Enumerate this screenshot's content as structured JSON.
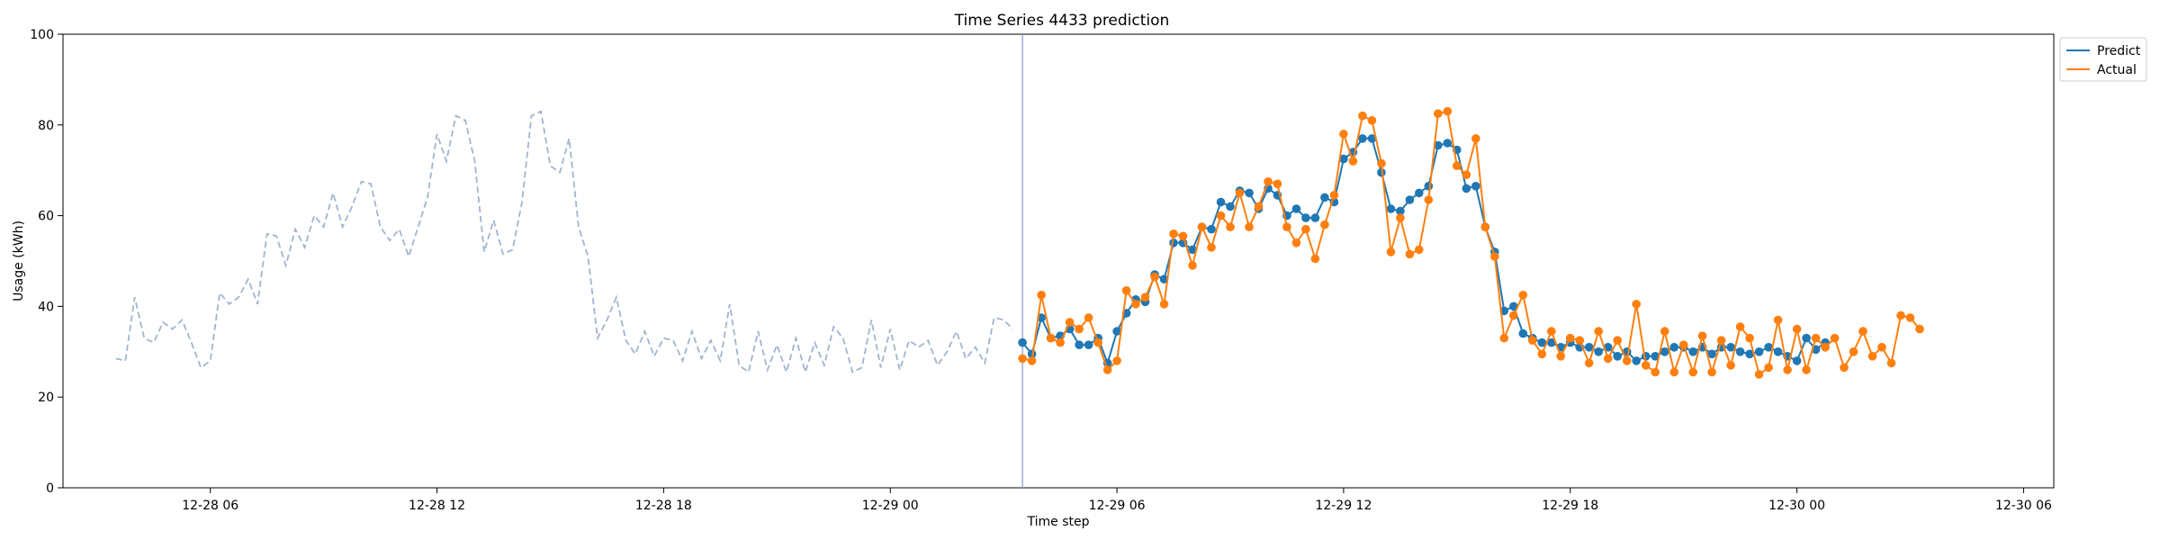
{
  "chart_data": {
    "type": "line",
    "title": "Time Series 4433 prediction",
    "xlabel": "Time step",
    "ylabel": "Usage (kWh)",
    "ylim": [
      0,
      100
    ],
    "yticks": [
      0,
      20,
      40,
      60,
      80,
      100
    ],
    "xlim_hours_from_12_28_00": [
      2.1,
      54.8
    ],
    "xticks": [
      {
        "label": "12-28 06",
        "hour": 6
      },
      {
        "label": "12-28 12",
        "hour": 12
      },
      {
        "label": "12-28 18",
        "hour": 18
      },
      {
        "label": "12-29 00",
        "hour": 24
      },
      {
        "label": "12-29 06",
        "hour": 30
      },
      {
        "label": "12-29 12",
        "hour": 36
      },
      {
        "label": "12-29 18",
        "hour": 42
      },
      {
        "label": "12-30 00",
        "hour": 48
      },
      {
        "label": "12-30 06",
        "hour": 54
      }
    ],
    "interval_hours": 0.25,
    "history": {
      "start_hour": 3.5,
      "step_hours": 0.25,
      "values": [
        28.5,
        28,
        42,
        33,
        32,
        36.5,
        35,
        37,
        32,
        26.5,
        28,
        43,
        40.5,
        42,
        46,
        40.5,
        56,
        55.5,
        49,
        57,
        53,
        60,
        57.5,
        65,
        57.5,
        62,
        67.5,
        67,
        57.5,
        54.5,
        57,
        51,
        57.5,
        64,
        78,
        72,
        82,
        81,
        72,
        52,
        59,
        51.5,
        52.5,
        63,
        82,
        83,
        71,
        69.5,
        77,
        57.5,
        51,
        33,
        37,
        42,
        32.5,
        29.5,
        34.5,
        29,
        33,
        32.5,
        28,
        34.5,
        28.5,
        32.5,
        28,
        40.5,
        27,
        25.5,
        34.5,
        26,
        31.5,
        25.5,
        33,
        25.5,
        32,
        27,
        35.5,
        33,
        25.5,
        26.5,
        37,
        26.5,
        35,
        26,
        32.5,
        31,
        32.5,
        27,
        30,
        34.5,
        28.5,
        31,
        27.5,
        37.5,
        37,
        35
      ]
    },
    "forecast_start_hour": 27.5,
    "series": [
      {
        "name": "Predict",
        "color": "#1f77b4",
        "start_hour": 27.5,
        "step_hours": 0.25,
        "values": [
          32,
          29.5,
          37.5,
          33,
          33.5,
          35,
          31.5,
          31.5,
          33,
          27.5,
          34.5,
          38.5,
          41.5,
          41,
          47,
          46,
          54,
          54,
          52.5,
          57.5,
          57,
          63,
          62,
          65.5,
          65,
          61.5,
          66,
          64.5,
          60,
          61.5,
          59.5,
          59.5,
          64,
          63,
          72.5,
          74,
          77,
          77,
          69.5,
          61.5,
          61,
          63.5,
          65,
          66.5,
          75.5,
          76,
          74.5,
          66,
          66.5,
          57.5,
          52,
          39,
          40,
          34,
          33,
          32,
          32,
          31,
          32,
          31,
          31,
          30,
          31,
          29,
          30,
          28,
          29,
          29,
          30,
          31,
          31,
          30,
          31,
          29.5,
          31,
          31,
          30,
          29.5,
          30,
          31,
          30,
          29,
          28,
          33,
          30.5,
          32
        ]
      },
      {
        "name": "Actual",
        "color": "#ff7f0e",
        "start_hour": 27.5,
        "step_hours": 0.25,
        "values": [
          28.5,
          28,
          42.5,
          33,
          32,
          36.5,
          35,
          37.5,
          32,
          26,
          28,
          43.5,
          40.5,
          42,
          46.5,
          40.5,
          56,
          55.5,
          49,
          57.5,
          53,
          60,
          57.5,
          65,
          57.5,
          62,
          67.5,
          67,
          57.5,
          54,
          57,
          50.5,
          58,
          64.5,
          78,
          72,
          82,
          81,
          71.5,
          52,
          59.5,
          51.5,
          52.5,
          63.5,
          82.5,
          83,
          71,
          69,
          77,
          57.5,
          51,
          33,
          38,
          42.5,
          32.5,
          29.5,
          34.5,
          29,
          33,
          32.5,
          27.5,
          34.5,
          28.5,
          32.5,
          28,
          40.5,
          27,
          25.5,
          34.5,
          25.5,
          31.5,
          25.5,
          33.5,
          25.5,
          32.5,
          27,
          35.5,
          33,
          25,
          26.5,
          37,
          26,
          35,
          26,
          33,
          31,
          33,
          26.5,
          30,
          34.5,
          29,
          31,
          27.5,
          38,
          37.5,
          35
        ]
      }
    ],
    "legend": {
      "position": "top-right-outside",
      "entries": [
        "Predict",
        "Actual"
      ]
    },
    "grid": false,
    "history_style": {
      "color": "#a0b4d0",
      "dash": "dashed"
    }
  }
}
